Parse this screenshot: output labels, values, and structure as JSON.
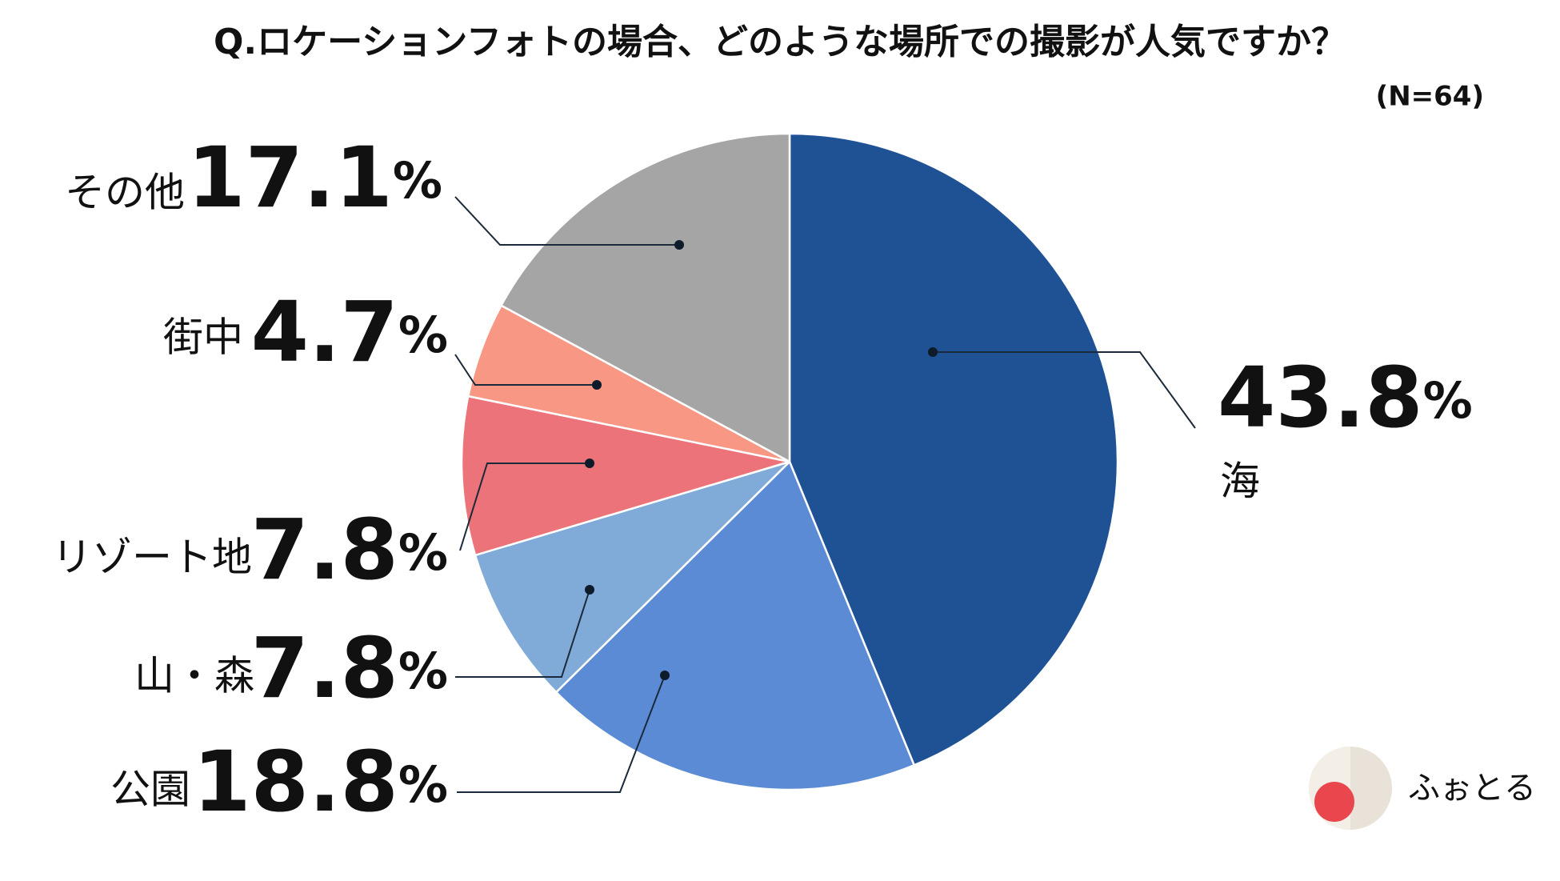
{
  "chart_data": {
    "type": "pie",
    "title": "Q.ロケーションフォトの場合、どのような場所での撮影が人気ですか？",
    "subtitle": "(N=64)",
    "categories": [
      "海",
      "公園",
      "山・森",
      "リゾート地",
      "街中",
      "その他"
    ],
    "values": [
      43.8,
      18.8,
      7.8,
      7.8,
      4.7,
      17.1
    ],
    "value_labels": [
      "43.8%",
      "18.8%",
      "7.8%",
      "7.8%",
      "4.7%",
      "17.1%"
    ],
    "colors": [
      "#1e5295",
      "#5b8bd4",
      "#80aad8",
      "#ec737a",
      "#f79784",
      "#a5a5a5"
    ]
  },
  "brand": "ふぉとる"
}
